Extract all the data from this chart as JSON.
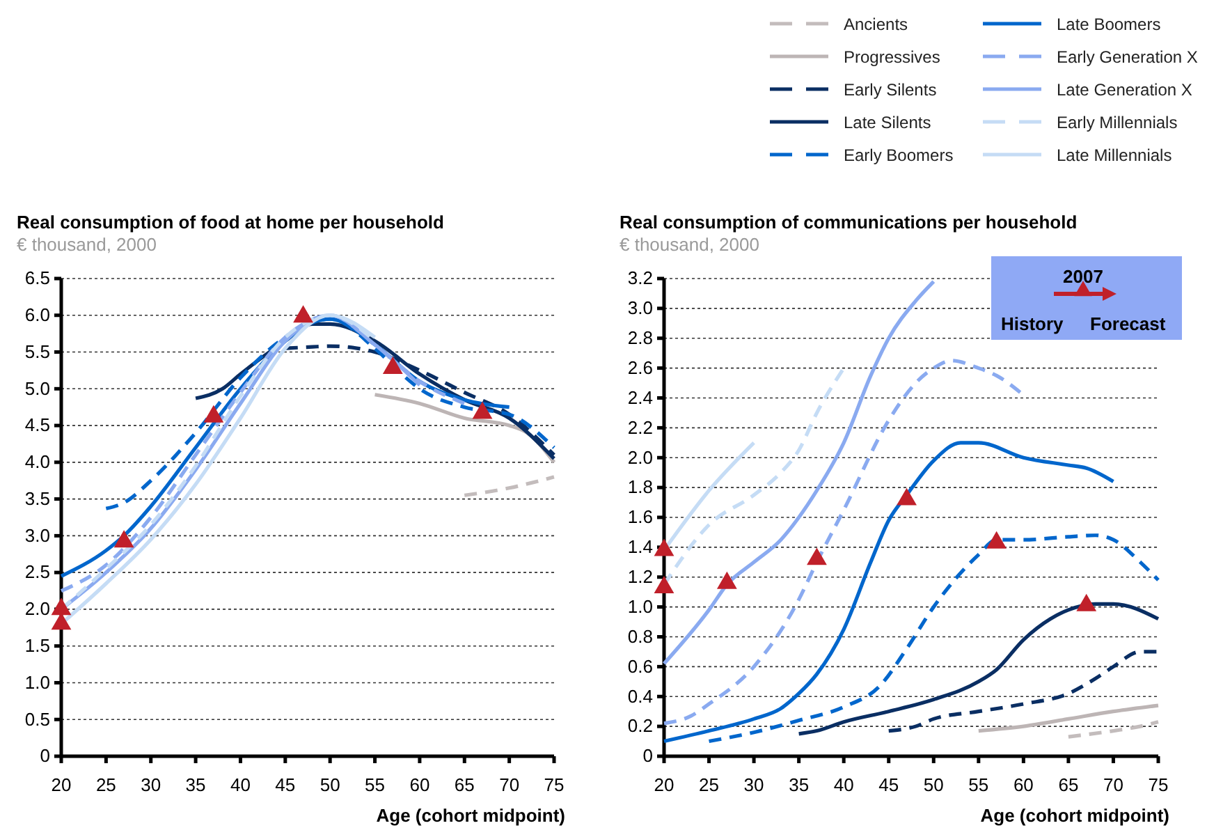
{
  "chart_data": [
    {
      "type": "line",
      "title": "Real consumption of food at home per household",
      "subtitle": "€ thousand, 2000",
      "xlabel": "Age (cohort midpoint)",
      "xlim": [
        20,
        75
      ],
      "xticks": [
        20,
        25,
        30,
        35,
        40,
        45,
        50,
        55,
        60,
        65,
        70,
        75
      ],
      "ylim": [
        0,
        6.5
      ],
      "yticks": [
        0,
        0.5,
        {
          "value": 1,
          "label": "1.0"
        },
        1.5,
        {
          "value": 2,
          "label": "2.0"
        },
        2.5,
        {
          "value": 3,
          "label": "3.0"
        },
        3.5,
        {
          "value": 4,
          "label": "4.0"
        },
        4.5,
        {
          "value": 5,
          "label": "5.0"
        },
        5.5,
        {
          "value": 6,
          "label": "6.0"
        },
        6.5
      ],
      "grid": "y",
      "legend": false,
      "series": [
        {
          "color": "#c3bcbc",
          "line_style": "dashed",
          "x": [
            65,
            70,
            75
          ],
          "values": [
            3.55,
            3.65,
            3.8
          ]
        },
        {
          "color": "#bdb5b5",
          "line_style": "solid",
          "x": [
            55,
            60,
            65,
            70,
            72,
            75
          ],
          "values": [
            4.92,
            4.8,
            4.6,
            4.5,
            4.4,
            4.0
          ]
        },
        {
          "color": "#0a2e63",
          "line_style": "dashed",
          "x": [
            45,
            48,
            50,
            55,
            60,
            65,
            70,
            75
          ],
          "values": [
            5.55,
            5.57,
            5.58,
            5.5,
            5.25,
            4.95,
            4.65,
            4.1
          ]
        },
        {
          "color": "#0a2e63",
          "line_style": "solid",
          "x": [
            35,
            38,
            40,
            45,
            48,
            50,
            55,
            60,
            65,
            70,
            75
          ],
          "values": [
            4.87,
            5.0,
            5.2,
            5.65,
            5.88,
            5.88,
            5.65,
            5.2,
            4.85,
            4.6,
            4.05
          ]
        },
        {
          "color": "#0066cc",
          "line_style": "dashed",
          "x": [
            25,
            27,
            30,
            35,
            40,
            45,
            50,
            55,
            58,
            60,
            65,
            70,
            75
          ],
          "values": [
            3.37,
            3.45,
            3.75,
            4.4,
            5.15,
            5.7,
            5.95,
            5.55,
            5.2,
            5.0,
            4.75,
            4.65,
            4.2
          ]
        },
        {
          "color": "#0066cc",
          "line_style": "solid",
          "x": [
            20,
            25,
            27,
            30,
            35,
            40,
            45,
            48,
            50,
            55,
            60,
            65,
            70
          ],
          "values": [
            2.45,
            2.8,
            3.0,
            3.4,
            4.2,
            5.0,
            5.65,
            5.9,
            5.95,
            5.6,
            5.1,
            4.85,
            4.75
          ]
        },
        {
          "color": "#8aaaf0",
          "line_style": "dashed",
          "x": [
            20,
            25,
            30,
            35,
            40,
            45,
            50,
            55,
            60,
            65
          ],
          "values": [
            2.25,
            2.6,
            3.25,
            4.1,
            4.95,
            5.7,
            6.0,
            5.6,
            5.1,
            4.8
          ]
        },
        {
          "color": "#8aaaf0",
          "line_style": "solid",
          "x": [
            20,
            25,
            30,
            35,
            40,
            45,
            50,
            55,
            60
          ],
          "values": [
            2.0,
            2.5,
            3.1,
            3.9,
            4.8,
            5.65,
            6.0,
            5.6,
            5.05
          ]
        },
        {
          "color": "#c5dcf5",
          "line_style": "dashed",
          "x": [
            20,
            25,
            30,
            35,
            40,
            45,
            50,
            55
          ],
          "values": [
            2.0,
            2.55,
            3.15,
            3.95,
            4.9,
            5.7,
            6.0,
            5.65
          ]
        },
        {
          "color": "#c5dcf5",
          "line_style": "solid",
          "x": [
            20,
            25,
            30,
            35,
            40,
            45,
            50,
            55
          ],
          "values": [
            1.8,
            2.35,
            2.95,
            3.7,
            4.6,
            5.55,
            6.0,
            5.7
          ]
        },
        {
          "type": "scatter",
          "marker": "triangle",
          "color": "#c0202a",
          "x": [
            20,
            20,
            27,
            37,
            47,
            57,
            67
          ],
          "values": [
            1.8,
            2.0,
            2.92,
            4.62,
            5.98,
            5.28,
            4.67
          ]
        }
      ]
    },
    {
      "type": "line",
      "title": "Real consumption of communications per household",
      "subtitle": "€ thousand, 2000",
      "xlabel": "Age (cohort midpoint)",
      "xlim": [
        20,
        75
      ],
      "xticks": [
        20,
        25,
        30,
        35,
        40,
        45,
        50,
        55,
        60,
        65,
        70,
        75
      ],
      "ylim": [
        0,
        3.2
      ],
      "yticks": [
        0,
        0.2,
        0.4,
        0.6,
        0.8,
        {
          "value": 1,
          "label": "1.0"
        },
        1.2,
        1.4,
        1.6,
        1.8,
        {
          "value": 2,
          "label": "2.0"
        },
        2.2,
        2.4,
        2.6,
        2.8,
        {
          "value": 3,
          "label": "3.0"
        },
        3.2
      ],
      "grid": "y",
      "legend": "top",
      "annotations": [
        "2007",
        "History",
        "Forecast"
      ],
      "series": [
        {
          "name": "Ancients",
          "color": "#c3bcbc",
          "line_style": "dashed",
          "x": [
            65,
            70,
            73,
            75
          ],
          "values": [
            0.13,
            0.17,
            0.2,
            0.23
          ]
        },
        {
          "name": "Progressives",
          "color": "#bdb5b5",
          "line_style": "solid",
          "x": [
            55,
            60,
            65,
            70,
            75
          ],
          "values": [
            0.17,
            0.2,
            0.25,
            0.3,
            0.34
          ]
        },
        {
          "name": "Early Silents",
          "color": "#0a2e63",
          "line_style": "dashed",
          "x": [
            45,
            48,
            50,
            55,
            60,
            65,
            68,
            70,
            73,
            75
          ],
          "values": [
            0.17,
            0.2,
            0.25,
            0.3,
            0.35,
            0.42,
            0.52,
            0.6,
            0.7,
            0.7
          ]
        },
        {
          "name": "Late Silents",
          "color": "#0a2e63",
          "line_style": "solid",
          "x": [
            35,
            37,
            40,
            45,
            50,
            55,
            57,
            60,
            63,
            65,
            68,
            70,
            75
          ],
          "values": [
            0.15,
            0.17,
            0.23,
            0.3,
            0.38,
            0.5,
            0.58,
            0.78,
            0.92,
            0.98,
            1.02,
            1.02,
            0.92
          ]
        },
        {
          "name": "Early Boomers",
          "color": "#0066cc",
          "line_style": "dashed",
          "x": [
            25,
            30,
            35,
            40,
            44,
            47,
            50,
            55,
            57,
            60,
            65,
            68,
            70,
            73,
            75
          ],
          "values": [
            0.1,
            0.16,
            0.24,
            0.33,
            0.47,
            0.72,
            1.0,
            1.35,
            1.45,
            1.45,
            1.47,
            1.48,
            1.45,
            1.3,
            1.18
          ]
        },
        {
          "name": "Late Boomers",
          "color": "#0066cc",
          "line_style": "solid",
          "x": [
            20,
            25,
            30,
            33,
            35,
            37,
            40,
            43,
            45,
            47,
            50,
            53,
            55,
            60,
            65,
            67,
            70
          ],
          "values": [
            0.1,
            0.17,
            0.25,
            0.32,
            0.42,
            0.55,
            0.85,
            1.3,
            1.58,
            1.75,
            1.98,
            2.1,
            2.1,
            2.0,
            1.95,
            1.93,
            1.84
          ]
        },
        {
          "name": "Early Generation X",
          "color": "#8aaaf0",
          "line_style": "dashed",
          "x": [
            20,
            23,
            25,
            30,
            35,
            37,
            40,
            45,
            48,
            50,
            52,
            55,
            57,
            60
          ],
          "values": [
            0.22,
            0.27,
            0.35,
            0.6,
            1.05,
            1.3,
            1.65,
            2.25,
            2.5,
            2.6,
            2.65,
            2.6,
            2.55,
            2.42
          ]
        },
        {
          "name": "Late Generation X",
          "color": "#8aaaf0",
          "line_style": "solid",
          "x": [
            20,
            25,
            27,
            30,
            33,
            35,
            37,
            40,
            43,
            45,
            48,
            50
          ],
          "values": [
            0.62,
            0.98,
            1.15,
            1.3,
            1.45,
            1.6,
            1.78,
            2.1,
            2.55,
            2.8,
            3.05,
            3.18
          ]
        },
        {
          "name": "Early Millennials",
          "color": "#c5dcf5",
          "line_style": "dashed",
          "x": [
            20,
            25,
            30,
            33,
            35,
            37,
            40
          ],
          "values": [
            1.15,
            1.55,
            1.75,
            1.9,
            2.05,
            2.3,
            2.6
          ]
        },
        {
          "name": "Late Millennials",
          "color": "#c5dcf5",
          "line_style": "solid",
          "x": [
            20,
            25,
            30
          ],
          "values": [
            1.38,
            1.78,
            2.1
          ]
        },
        {
          "type": "scatter",
          "marker": "triangle",
          "color": "#c0202a",
          "x": [
            20,
            20,
            27,
            37,
            47,
            57,
            67
          ],
          "values": [
            1.38,
            1.13,
            1.16,
            1.32,
            1.72,
            1.43,
            1.01
          ]
        }
      ]
    }
  ]
}
